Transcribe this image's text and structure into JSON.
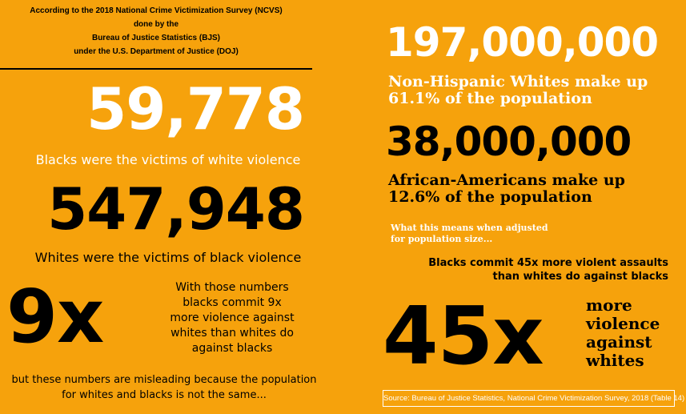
{
  "header": {
    "lines": [
      "According to the 2018 National Crime Victimization Survey (NCVS)",
      "done by the",
      "Bureau of Justice Statistics (BJS)",
      "under the U.S. Department of Justice (DOJ)"
    ]
  },
  "left": {
    "stat1": {
      "number": "59,778",
      "caption": "Blacks were the victims of white violence"
    },
    "stat2": {
      "number": "547,948",
      "caption": "Whites were the victims of black violence"
    },
    "ratio": {
      "number": "9x",
      "text": [
        "With those numbers",
        "blacks commit 9x",
        "more violence against",
        "whites than whites do",
        "against blacks"
      ]
    },
    "footer": [
      "but these numbers are misleading because the population",
      "for whites and blacks is not the same..."
    ]
  },
  "right": {
    "stat1": {
      "number": "197,000,000",
      "caption": [
        "Non-Hispanic Whites make up",
        "61.1% of the population"
      ]
    },
    "stat2": {
      "number": "38,000,000",
      "caption": [
        "African-Americans make up",
        "12.6% of the population"
      ]
    },
    "adjusted": [
      "What this means when adjusted",
      "for population size..."
    ],
    "claim": [
      "Blacks commit 45x more violent assaults",
      "than whites do against blacks"
    ],
    "ratio": {
      "number": "45x",
      "text": [
        "more",
        "violence",
        "against",
        "whites"
      ]
    },
    "source": "Source: Bureau of Justice Statistics, National Crime Victimization Survey, 2018 (Table 14)"
  }
}
